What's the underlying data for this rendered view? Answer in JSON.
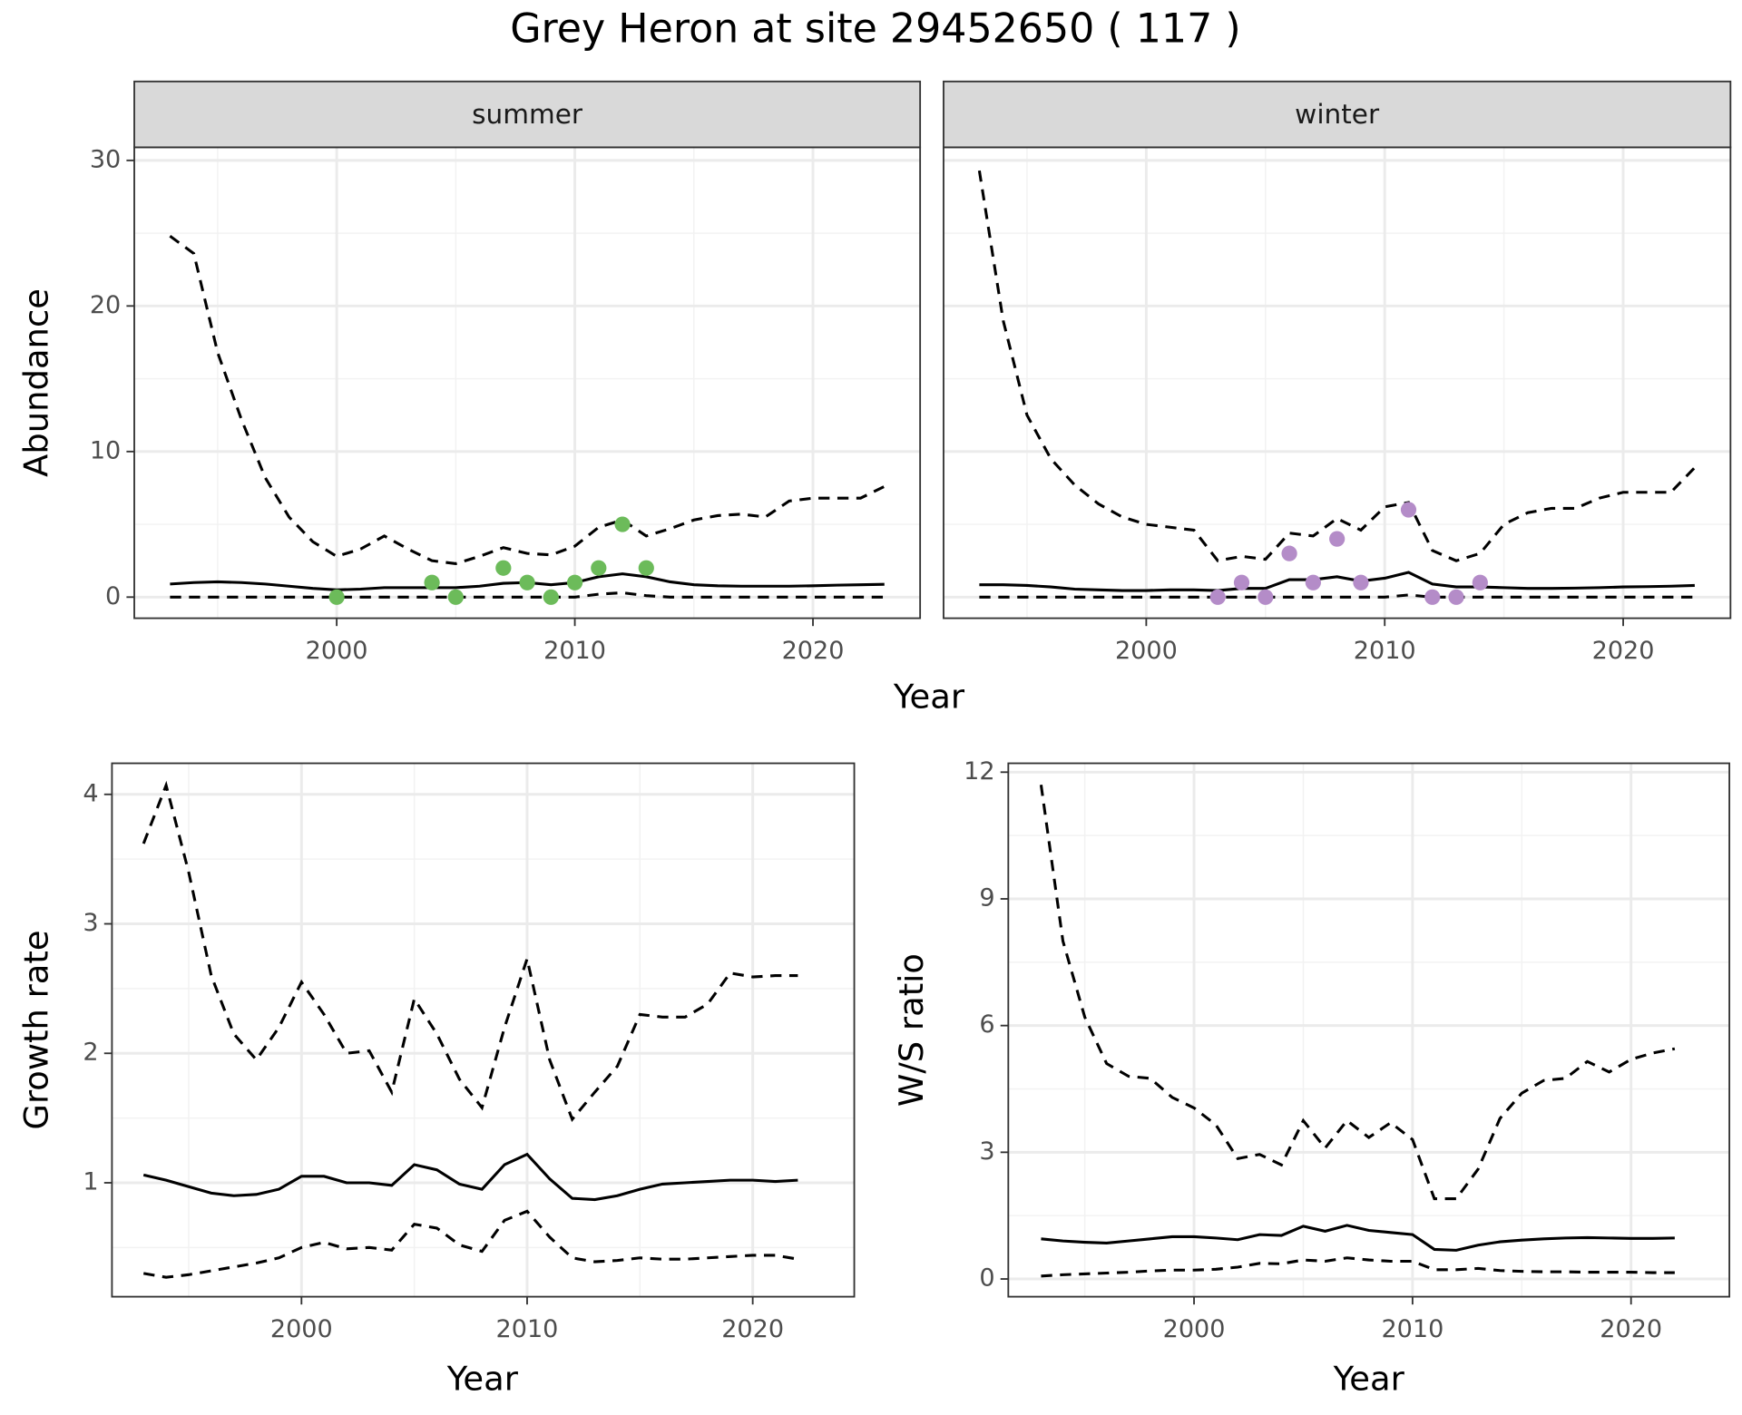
{
  "title": "Grey Heron at site 29452650 ( 117 )",
  "chart_data": [
    {
      "type": "line",
      "panel_title": "summer",
      "x_label": "Year",
      "y_label": "Abundance",
      "xlim": [
        1991.5,
        2024.5
      ],
      "xticks": [
        2000,
        2010,
        2020
      ],
      "ylim": [
        -1.45,
        30.9
      ],
      "yticks": [
        0,
        10,
        20,
        30
      ],
      "grid": true,
      "x": [
        1993,
        1994,
        1995,
        1996,
        1997,
        1998,
        1999,
        2000,
        2001,
        2002,
        2003,
        2004,
        2005,
        2006,
        2007,
        2008,
        2009,
        2010,
        2011,
        2012,
        2013,
        2014,
        2015,
        2016,
        2017,
        2018,
        2019,
        2020,
        2021,
        2022,
        2023
      ],
      "series": [
        {
          "color": "#000000",
          "linestyle": "dashed",
          "values": [
            24.8,
            23.6,
            16.8,
            12.2,
            8.2,
            5.5,
            3.8,
            2.8,
            3.3,
            4.2,
            3.3,
            2.5,
            2.3,
            2.8,
            3.4,
            3.0,
            2.9,
            3.5,
            4.8,
            5.3,
            4.2,
            4.7,
            5.3,
            5.6,
            5.7,
            5.5,
            6.6,
            6.8,
            6.8,
            6.8,
            7.6
          ]
        },
        {
          "color": "#000000",
          "linestyle": "solid",
          "values": [
            0.9,
            1.0,
            1.05,
            1.0,
            0.9,
            0.75,
            0.6,
            0.5,
            0.55,
            0.65,
            0.65,
            0.65,
            0.65,
            0.75,
            0.95,
            1.0,
            0.85,
            1.0,
            1.4,
            1.6,
            1.4,
            1.05,
            0.85,
            0.78,
            0.75,
            0.75,
            0.75,
            0.78,
            0.82,
            0.85,
            0.88
          ]
        },
        {
          "color": "#000000",
          "linestyle": "dashed",
          "values": [
            0,
            0,
            0,
            0,
            0,
            0,
            0,
            0,
            0,
            0,
            0,
            0,
            0,
            0,
            0,
            0,
            0,
            0,
            0.2,
            0.3,
            0.1,
            0,
            0,
            0,
            0,
            0,
            0,
            0,
            0,
            0,
            0
          ]
        },
        {
          "color": "#6cbb5a",
          "marker": "point",
          "values": [
            null,
            null,
            null,
            null,
            null,
            null,
            null,
            0,
            null,
            null,
            null,
            1,
            0,
            null,
            2,
            1,
            0,
            1,
            2,
            5,
            2,
            null,
            null,
            null,
            null,
            null,
            null,
            null,
            null,
            null,
            null
          ]
        }
      ]
    },
    {
      "type": "line",
      "panel_title": "winter",
      "xlim": [
        1991.5,
        2024.5
      ],
      "xticks": [
        2000,
        2010,
        2020
      ],
      "grid": true,
      "x": [
        1993,
        1994,
        1995,
        1996,
        1997,
        1998,
        1999,
        2000,
        2001,
        2002,
        2003,
        2004,
        2005,
        2006,
        2007,
        2008,
        2009,
        2010,
        2011,
        2012,
        2013,
        2014,
        2015,
        2016,
        2017,
        2018,
        2019,
        2020,
        2021,
        2022,
        2023
      ],
      "series": [
        {
          "color": "#000000",
          "linestyle": "dashed",
          "values": [
            29.3,
            19.0,
            12.5,
            9.5,
            7.7,
            6.4,
            5.5,
            5.0,
            4.8,
            4.6,
            2.5,
            2.8,
            2.6,
            4.4,
            4.2,
            5.4,
            4.6,
            6.2,
            6.5,
            3.2,
            2.5,
            3.0,
            5.0,
            5.8,
            6.1,
            6.1,
            6.8,
            7.2,
            7.2,
            7.2,
            8.9
          ]
        },
        {
          "color": "#000000",
          "linestyle": "solid",
          "values": [
            0.85,
            0.85,
            0.8,
            0.7,
            0.55,
            0.5,
            0.45,
            0.45,
            0.5,
            0.5,
            0.45,
            0.6,
            0.6,
            1.2,
            1.2,
            1.4,
            1.1,
            1.3,
            1.7,
            0.9,
            0.7,
            0.7,
            0.65,
            0.6,
            0.6,
            0.62,
            0.65,
            0.7,
            0.72,
            0.75,
            0.8
          ]
        },
        {
          "color": "#000000",
          "linestyle": "dashed",
          "values": [
            0,
            0,
            0,
            0,
            0,
            0,
            0,
            0,
            0,
            0,
            0,
            0,
            0,
            0,
            0,
            0,
            0,
            0,
            0.15,
            0,
            0,
            0,
            0,
            0,
            0,
            0,
            0,
            0,
            0,
            0,
            0
          ]
        },
        {
          "color": "#b48cc8",
          "marker": "point",
          "values": [
            null,
            null,
            null,
            null,
            null,
            null,
            null,
            null,
            null,
            null,
            0,
            1,
            0,
            3,
            1,
            4,
            1,
            null,
            6,
            0,
            0,
            1,
            null,
            null,
            null,
            null,
            null,
            null,
            null,
            null,
            null
          ]
        }
      ]
    },
    {
      "type": "line",
      "x_label": "Year",
      "y_label": "Growth rate",
      "xlim": [
        1991.6,
        2024.5
      ],
      "xticks": [
        2000,
        2010,
        2020
      ],
      "ylim": [
        0.12,
        4.24
      ],
      "yticks": [
        1,
        2,
        3,
        4
      ],
      "grid": true,
      "x": [
        1993,
        1994,
        1995,
        1996,
        1997,
        1998,
        1999,
        2000,
        2001,
        2002,
        2003,
        2004,
        2005,
        2006,
        2007,
        2008,
        2009,
        2010,
        2011,
        2012,
        2013,
        2014,
        2015,
        2016,
        2017,
        2018,
        2019,
        2020,
        2021,
        2022
      ],
      "series": [
        {
          "color": "#000000",
          "linestyle": "dashed",
          "values": [
            3.62,
            4.07,
            3.4,
            2.6,
            2.15,
            1.95,
            2.2,
            2.55,
            2.3,
            2.0,
            2.02,
            1.7,
            2.42,
            2.15,
            1.8,
            1.58,
            2.2,
            2.73,
            1.95,
            1.49,
            1.7,
            1.9,
            2.3,
            2.28,
            2.28,
            2.38,
            2.62,
            2.59,
            2.6,
            2.6
          ]
        },
        {
          "color": "#000000",
          "linestyle": "solid",
          "values": [
            1.06,
            1.02,
            0.97,
            0.92,
            0.9,
            0.91,
            0.95,
            1.05,
            1.05,
            1.0,
            1.0,
            0.98,
            1.14,
            1.1,
            0.99,
            0.95,
            1.14,
            1.22,
            1.03,
            0.88,
            0.87,
            0.9,
            0.95,
            0.99,
            1.0,
            1.01,
            1.02,
            1.02,
            1.01,
            1.02
          ]
        },
        {
          "color": "#000000",
          "linestyle": "dashed",
          "values": [
            0.3,
            0.27,
            0.29,
            0.32,
            0.35,
            0.38,
            0.42,
            0.5,
            0.54,
            0.49,
            0.5,
            0.48,
            0.68,
            0.65,
            0.52,
            0.47,
            0.71,
            0.78,
            0.58,
            0.42,
            0.39,
            0.4,
            0.42,
            0.41,
            0.41,
            0.42,
            0.43,
            0.44,
            0.44,
            0.41
          ]
        }
      ]
    },
    {
      "type": "line",
      "x_label": "Year",
      "y_label": "W/S ratio",
      "xlim": [
        1991.5,
        2024.5
      ],
      "xticks": [
        2000,
        2010,
        2020
      ],
      "ylim": [
        -0.42,
        12.21
      ],
      "yticks": [
        0,
        3,
        6,
        9,
        12
      ],
      "grid": true,
      "x": [
        1993,
        1994,
        1995,
        1996,
        1997,
        1998,
        1999,
        2000,
        2001,
        2002,
        2003,
        2004,
        2005,
        2006,
        2007,
        2008,
        2009,
        2010,
        2011,
        2012,
        2013,
        2014,
        2015,
        2016,
        2017,
        2018,
        2019,
        2020,
        2021,
        2022
      ],
      "series": [
        {
          "color": "#000000",
          "linestyle": "dashed",
          "values": [
            11.7,
            8.0,
            6.2,
            5.1,
            4.8,
            4.75,
            4.3,
            4.05,
            3.65,
            2.85,
            2.95,
            2.7,
            3.75,
            3.1,
            3.75,
            3.35,
            3.7,
            3.3,
            1.9,
            1.9,
            2.6,
            3.8,
            4.4,
            4.7,
            4.75,
            5.15,
            4.9,
            5.2,
            5.35,
            5.45
          ]
        },
        {
          "color": "#000000",
          "linestyle": "solid",
          "values": [
            0.95,
            0.9,
            0.87,
            0.85,
            0.9,
            0.95,
            1.0,
            1.0,
            0.97,
            0.93,
            1.05,
            1.03,
            1.25,
            1.13,
            1.27,
            1.15,
            1.1,
            1.05,
            0.7,
            0.68,
            0.8,
            0.88,
            0.92,
            0.95,
            0.97,
            0.98,
            0.97,
            0.96,
            0.96,
            0.97
          ]
        },
        {
          "color": "#000000",
          "linestyle": "dashed",
          "values": [
            0.07,
            0.1,
            0.12,
            0.14,
            0.16,
            0.19,
            0.21,
            0.21,
            0.23,
            0.28,
            0.37,
            0.36,
            0.45,
            0.42,
            0.5,
            0.45,
            0.42,
            0.42,
            0.22,
            0.22,
            0.25,
            0.2,
            0.18,
            0.17,
            0.17,
            0.16,
            0.16,
            0.16,
            0.15,
            0.15
          ]
        }
      ]
    }
  ]
}
